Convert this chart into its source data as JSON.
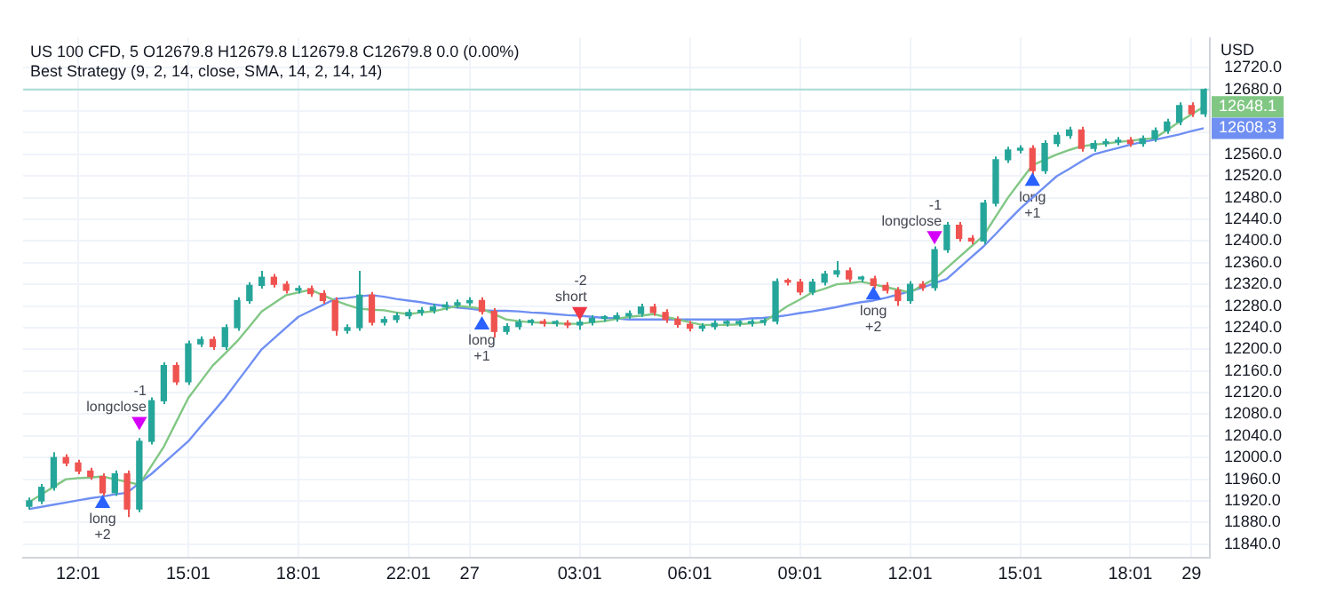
{
  "chart_data": {
    "type": "candlestick",
    "title": "US 100 CFD, 5 O12679.8 H12679.8 L12679.8 C12679.8 0.0 (0.00%)",
    "subtitle": "Best Strategy (9, 2, 14, close, SMA, 14, 2, 14, 14)",
    "ylabel": "USD",
    "categories": [
      null,
      null,
      null,
      null,
      "12:01",
      null,
      null,
      null,
      null,
      null,
      null,
      null,
      null,
      "15:01",
      null,
      null,
      null,
      null,
      null,
      null,
      null,
      null,
      "18:01",
      null,
      null,
      null,
      null,
      null,
      null,
      null,
      null,
      "22:01",
      null,
      null,
      null,
      null,
      "27",
      null,
      null,
      null,
      null,
      null,
      null,
      null,
      null,
      "03:01",
      null,
      null,
      null,
      null,
      null,
      null,
      null,
      null,
      "06:01",
      null,
      null,
      null,
      null,
      null,
      null,
      null,
      null,
      "09:01",
      null,
      null,
      null,
      null,
      null,
      null,
      null,
      null,
      "12:01",
      null,
      null,
      null,
      null,
      null,
      null,
      null,
      null,
      "15:01",
      null,
      null,
      null,
      null,
      null,
      null,
      null,
      null,
      "18:01",
      null,
      null,
      null,
      null,
      "29",
      null
    ],
    "ohlc": [
      [
        11910,
        11926,
        11904,
        11920
      ],
      [
        11920,
        11951,
        11914,
        11945
      ],
      [
        11945,
        12010,
        11939,
        12000
      ],
      [
        12000,
        12006,
        11984,
        11990
      ],
      [
        11990,
        11996,
        11969,
        11975
      ],
      [
        11975,
        11981,
        11959,
        11965
      ],
      [
        11965,
        11971,
        11929,
        11935
      ],
      [
        11935,
        11976,
        11929,
        11970
      ],
      [
        11970,
        11976,
        11890,
        11905
      ],
      [
        11905,
        12036,
        11899,
        12030
      ],
      [
        12030,
        12111,
        12024,
        12105
      ],
      [
        12105,
        12176,
        12099,
        12170
      ],
      [
        12170,
        12176,
        12134,
        12140
      ],
      [
        12140,
        12216,
        12134,
        12210
      ],
      [
        12210,
        12224,
        12204,
        12218
      ],
      [
        12218,
        12224,
        12199,
        12205
      ],
      [
        12205,
        12246,
        12199,
        12240
      ],
      [
        12240,
        12296,
        12234,
        12290
      ],
      [
        12290,
        12324,
        12284,
        12318
      ],
      [
        12318,
        12345,
        12312,
        12333
      ],
      [
        12333,
        12339,
        12314,
        12320
      ],
      [
        12320,
        12326,
        12303,
        12309
      ],
      [
        12309,
        12318,
        12303,
        12312
      ],
      [
        12312,
        12318,
        12297,
        12303
      ],
      [
        12303,
        12309,
        12284,
        12290
      ],
      [
        12290,
        12296,
        12225,
        12235
      ],
      [
        12235,
        12246,
        12229,
        12240
      ],
      [
        12240,
        12345,
        12234,
        12300
      ],
      [
        12300,
        12306,
        12244,
        12250
      ],
      [
        12250,
        12261,
        12244,
        12255
      ],
      [
        12255,
        12268,
        12249,
        12262
      ],
      [
        12262,
        12274,
        12256,
        12268
      ],
      [
        12268,
        12278,
        12262,
        12272
      ],
      [
        12272,
        12284,
        12266,
        12278
      ],
      [
        12278,
        12288,
        12272,
        12282
      ],
      [
        12282,
        12292,
        12276,
        12286
      ],
      [
        12286,
        12296,
        12280,
        12290
      ],
      [
        12290,
        12296,
        12264,
        12270
      ],
      [
        12270,
        12276,
        12222,
        12233
      ],
      [
        12233,
        12248,
        12227,
        12242
      ],
      [
        12242,
        12256,
        12236,
        12250
      ],
      [
        12250,
        12256,
        12244,
        12250
      ],
      [
        12250,
        12256,
        12242,
        12248
      ],
      [
        12248,
        12254,
        12242,
        12248
      ],
      [
        12248,
        12254,
        12239,
        12245
      ],
      [
        12245,
        12256,
        12236,
        12250
      ],
      [
        12250,
        12263,
        12244,
        12257
      ],
      [
        12257,
        12263,
        12251,
        12257
      ],
      [
        12257,
        12268,
        12251,
        12262
      ],
      [
        12262,
        12272,
        12256,
        12266
      ],
      [
        12266,
        12284,
        12260,
        12278
      ],
      [
        12278,
        12284,
        12262,
        12268
      ],
      [
        12268,
        12274,
        12249,
        12255
      ],
      [
        12255,
        12261,
        12240,
        12246
      ],
      [
        12246,
        12252,
        12233,
        12239
      ],
      [
        12239,
        12248,
        12233,
        12242
      ],
      [
        12242,
        12254,
        12236,
        12248
      ],
      [
        12248,
        12254,
        12242,
        12248
      ],
      [
        12248,
        12254,
        12242,
        12248
      ],
      [
        12248,
        12256,
        12242,
        12250
      ],
      [
        12250,
        12258,
        12244,
        12252
      ],
      [
        12252,
        12331,
        12246,
        12325
      ],
      [
        12325,
        12331,
        12318,
        12324
      ],
      [
        12324,
        12330,
        12300,
        12306
      ],
      [
        12306,
        12330,
        12300,
        12324
      ],
      [
        12324,
        12345,
        12318,
        12339
      ],
      [
        12339,
        12363,
        12333,
        12345
      ],
      [
        12345,
        12351,
        12324,
        12330
      ],
      [
        12330,
        12336,
        12324,
        12330
      ],
      [
        12330,
        12336,
        12312,
        12318
      ],
      [
        12318,
        12324,
        12303,
        12309
      ],
      [
        12309,
        12315,
        12280,
        12290
      ],
      [
        12290,
        12326,
        12284,
        12320
      ],
      [
        12320,
        12326,
        12308,
        12314
      ],
      [
        12314,
        12390,
        12308,
        12384
      ],
      [
        12384,
        12435,
        12378,
        12429
      ],
      [
        12429,
        12435,
        12399,
        12405
      ],
      [
        12405,
        12411,
        12394,
        12400
      ],
      [
        12400,
        12476,
        12394,
        12470
      ],
      [
        12470,
        12556,
        12464,
        12550
      ],
      [
        12550,
        12574,
        12544,
        12568
      ],
      [
        12568,
        12577,
        12562,
        12571
      ],
      [
        12571,
        12577,
        12522,
        12530
      ],
      [
        12530,
        12586,
        12524,
        12580
      ],
      [
        12580,
        12601,
        12574,
        12595
      ],
      [
        12595,
        12611,
        12589,
        12605
      ],
      [
        12605,
        12611,
        12565,
        12571
      ],
      [
        12571,
        12586,
        12565,
        12580
      ],
      [
        12580,
        12589,
        12574,
        12583
      ],
      [
        12583,
        12592,
        12577,
        12586
      ],
      [
        12586,
        12592,
        12574,
        12580
      ],
      [
        12580,
        12595,
        12574,
        12589
      ],
      [
        12589,
        12610,
        12583,
        12604
      ],
      [
        12604,
        12626,
        12598,
        12620
      ],
      [
        12620,
        12656,
        12614,
        12650
      ],
      [
        12650,
        12656,
        12629,
        12635
      ],
      [
        12635,
        12682,
        12629,
        12679.8
      ]
    ],
    "colors": [
      "#26a69a",
      "#26a69a",
      "#26a69a",
      "#ef5350",
      "#ef5350",
      "#ef5350",
      "#ef5350",
      "#26a69a",
      "#ef5350",
      "#26a69a",
      "#26a69a",
      "#26a69a",
      "#ef5350",
      "#26a69a",
      "#26a69a",
      "#ef5350",
      "#26a69a",
      "#26a69a",
      "#26a69a",
      "#26a69a",
      "#ef5350",
      "#ef5350",
      "#26a69a",
      "#ef5350",
      "#ef5350",
      "#ef5350",
      "#26a69a",
      "#26a69a",
      "#ef5350",
      "#26a69a",
      "#26a69a",
      "#26a69a",
      "#26a69a",
      "#26a69a",
      "#26a69a",
      "#26a69a",
      "#26a69a",
      "#ef5350",
      "#ef5350",
      "#26a69a",
      "#26a69a",
      "#26a69a",
      "#ef5350",
      "#26a69a",
      "#ef5350",
      "#26a69a",
      "#26a69a",
      "#26a69a",
      "#26a69a",
      "#26a69a",
      "#26a69a",
      "#ef5350",
      "#ef5350",
      "#ef5350",
      "#ef5350",
      "#26a69a",
      "#26a69a",
      "#26a69a",
      "#26a69a",
      "#26a69a",
      "#26a69a",
      "#26a69a",
      "#ef5350",
      "#ef5350",
      "#26a69a",
      "#26a69a",
      "#26a69a",
      "#ef5350",
      "#26a69a",
      "#ef5350",
      "#ef5350",
      "#ef5350",
      "#26a69a",
      "#ef5350",
      "#26a69a",
      "#26a69a",
      "#ef5350",
      "#ef5350",
      "#26a69a",
      "#26a69a",
      "#26a69a",
      "#26a69a",
      "#ef5350",
      "#26a69a",
      "#26a69a",
      "#26a69a",
      "#ef5350",
      "#26a69a",
      "#26a69a",
      "#26a69a",
      "#ef5350",
      "#26a69a",
      "#26a69a",
      "#26a69a",
      "#26a69a",
      "#ef5350",
      "#26a69a"
    ],
    "series": [
      {
        "type": "line",
        "color": "#81c784",
        "values": [
          11918,
          11932,
          11946,
          11960,
          11962,
          11963,
          11965,
          11960,
          11955,
          11950,
          11985,
          12020,
          12065,
          12110,
          12140,
          12170,
          12192,
          12215,
          12242,
          12270,
          12285,
          12300,
          12305,
          12310,
          12300,
          12290,
          12282,
          12275,
          12273,
          12272,
          12268,
          12265,
          12268,
          12270,
          12275,
          12280,
          12278,
          12275,
          12265,
          12255,
          12252,
          12250,
          12249,
          12248,
          12247,
          12247,
          12250,
          12252,
          12256,
          12260,
          12262,
          12265,
          12260,
          12255,
          12250,
          12245,
          12245,
          12245,
          12246,
          12248,
          12250,
          12265,
          12280,
          12292,
          12305,
          12312,
          12320,
          12322,
          12325,
          12320,
          12315,
          12310,
          12305,
          12318,
          12330,
          12350,
          12370,
          12390,
          12410,
          12445,
          12480,
          12510,
          12540,
          12550,
          12560,
          12568,
          12575,
          12578,
          12580,
          12583,
          12585,
          12588,
          12590,
          12605,
          12620,
          12634,
          12648.1
        ],
        "value_labels": [
          null,
          null,
          null,
          null,
          null,
          null,
          null,
          null,
          null,
          null,
          null,
          null,
          null,
          null,
          null,
          null,
          null,
          null,
          null,
          null,
          null,
          null,
          null,
          null,
          null,
          null,
          null,
          null,
          null,
          null,
          null,
          null,
          null,
          null,
          null,
          null,
          null,
          null,
          null,
          null,
          null,
          null,
          null,
          null,
          null,
          null,
          null,
          null,
          null,
          null,
          null,
          null,
          null,
          null,
          null,
          null,
          null,
          null,
          null,
          null,
          null,
          null,
          null,
          null,
          null,
          null,
          null,
          null,
          null,
          null,
          null,
          null,
          null,
          null,
          null,
          null,
          null,
          null,
          null,
          null,
          null,
          null,
          null,
          null,
          null,
          null,
          null,
          null,
          null,
          null,
          null,
          null,
          null,
          null,
          null,
          null,
          "12648.1"
        ]
      },
      {
        "type": "line",
        "color": "#6f8ff2",
        "values": [
          11905,
          11909,
          11913,
          11917,
          11921,
          11925,
          11928,
          11932,
          11935,
          11953,
          11970,
          11990,
          12010,
          12030,
          12057,
          12083,
          12110,
          12140,
          12170,
          12200,
          12220,
          12240,
          12260,
          12271,
          12282,
          12293,
          12295,
          12298,
          12300,
          12297,
          12293,
          12290,
          12287,
          12283,
          12280,
          12277,
          12275,
          12272,
          12271,
          12271,
          12270,
          12268,
          12267,
          12265,
          12263,
          12262,
          12260,
          12258,
          12257,
          12255,
          12255,
          12255,
          12255,
          12255,
          12255,
          12255,
          12255,
          12255,
          12255,
          12257,
          12258,
          12260,
          12263,
          12267,
          12270,
          12274,
          12278,
          12283,
          12287,
          12290,
          12295,
          12301,
          12307,
          12314,
          12322,
          12330,
          12350,
          12370,
          12390,
          12413,
          12437,
          12460,
          12480,
          12500,
          12520,
          12533,
          12547,
          12560,
          12566,
          12572,
          12578,
          12583,
          12587,
          12592,
          12597,
          12603,
          12608.3
        ],
        "value_labels": [
          null,
          null,
          null,
          null,
          null,
          null,
          null,
          null,
          null,
          null,
          null,
          null,
          null,
          null,
          null,
          null,
          null,
          null,
          null,
          null,
          null,
          null,
          null,
          null,
          null,
          null,
          null,
          null,
          null,
          null,
          null,
          null,
          null,
          null,
          null,
          null,
          null,
          null,
          null,
          null,
          null,
          null,
          null,
          null,
          null,
          null,
          null,
          null,
          null,
          null,
          null,
          null,
          null,
          null,
          null,
          null,
          null,
          null,
          null,
          null,
          null,
          null,
          null,
          null,
          null,
          null,
          null,
          null,
          null,
          null,
          null,
          null,
          null,
          null,
          null,
          null,
          null,
          null,
          null,
          null,
          null,
          null,
          null,
          null,
          null,
          null,
          null,
          null,
          null,
          null,
          null,
          null,
          null,
          null,
          null,
          null,
          "12608.3"
        ]
      },
      {
        "type": "scatter",
        "name": "long +2",
        "color": "#2962ff",
        "marker": "triangle",
        "values": [
          null,
          null,
          null,
          null,
          null,
          null,
          11915,
          null,
          null,
          null,
          null,
          null,
          null,
          null,
          null,
          null,
          null,
          null,
          null,
          null,
          null,
          null,
          null,
          null,
          null,
          null,
          null,
          null,
          null,
          null,
          null,
          null,
          null,
          null,
          null,
          null,
          null,
          null,
          null,
          null,
          null,
          null,
          null,
          null,
          null,
          null,
          null,
          null,
          null,
          null,
          null,
          null,
          null,
          null,
          null,
          null,
          null,
          null,
          null,
          null,
          null,
          null,
          null,
          null,
          null,
          null,
          null,
          null,
          null,
          12300,
          null,
          null,
          null,
          null,
          null,
          null,
          null,
          null,
          null,
          null,
          null,
          null,
          null,
          null,
          null,
          null,
          null,
          null,
          null,
          null,
          null,
          null,
          null,
          null,
          null,
          null,
          null
        ]
      },
      {
        "type": "scatter",
        "name": "-1 longclose",
        "color": "#d500f9",
        "marker": "triangle",
        "values": [
          null,
          null,
          null,
          null,
          null,
          null,
          null,
          null,
          null,
          12067,
          null,
          null,
          null,
          null,
          null,
          null,
          null,
          null,
          null,
          null,
          null,
          null,
          null,
          null,
          null,
          null,
          null,
          null,
          null,
          null,
          null,
          null,
          null,
          null,
          null,
          null,
          null,
          null,
          null,
          null,
          null,
          null,
          null,
          null,
          null,
          null,
          null,
          null,
          null,
          null,
          null,
          null,
          null,
          null,
          null,
          null,
          null,
          null,
          null,
          null,
          null,
          null,
          null,
          null,
          null,
          null,
          null,
          null,
          null,
          null,
          null,
          null,
          null,
          null,
          12410,
          null,
          null,
          null,
          null,
          null,
          null,
          null,
          null,
          null,
          null,
          null,
          null,
          null,
          null,
          null,
          null,
          null,
          null,
          null,
          null,
          null,
          null
        ]
      },
      {
        "type": "scatter",
        "name": "long +1",
        "color": "#2962ff",
        "marker": "triangle",
        "values": [
          null,
          null,
          null,
          null,
          null,
          null,
          null,
          null,
          null,
          null,
          null,
          null,
          null,
          null,
          null,
          null,
          null,
          null,
          null,
          null,
          null,
          null,
          null,
          null,
          null,
          null,
          null,
          null,
          null,
          null,
          null,
          null,
          null,
          null,
          null,
          null,
          null,
          12245,
          null,
          null,
          null,
          null,
          null,
          null,
          null,
          null,
          null,
          null,
          null,
          null,
          null,
          null,
          null,
          null,
          null,
          null,
          null,
          null,
          null,
          null,
          null,
          null,
          null,
          null,
          null,
          null,
          null,
          null,
          null,
          null,
          null,
          null,
          null,
          null,
          null,
          null,
          null,
          null,
          null,
          null,
          null,
          null,
          12510,
          null,
          null,
          null,
          null,
          null,
          null,
          null,
          null,
          null,
          null,
          null,
          null,
          null,
          null
        ]
      },
      {
        "type": "scatter",
        "name": "-2 short",
        "color": "#f23645",
        "marker": "triangle",
        "values": [
          null,
          null,
          null,
          null,
          null,
          null,
          null,
          null,
          null,
          null,
          null,
          null,
          null,
          null,
          null,
          null,
          null,
          null,
          null,
          null,
          null,
          null,
          null,
          null,
          null,
          null,
          null,
          null,
          null,
          null,
          null,
          null,
          null,
          null,
          null,
          null,
          null,
          null,
          null,
          null,
          null,
          null,
          null,
          null,
          null,
          12270,
          null,
          null,
          null,
          null,
          null,
          null,
          null,
          null,
          null,
          null,
          null,
          null,
          null,
          null,
          null,
          null,
          null,
          null,
          null,
          null,
          null,
          null,
          null,
          null,
          null,
          null,
          null,
          null,
          null,
          null,
          null,
          null,
          null,
          null,
          null,
          null,
          null,
          null,
          null,
          null,
          null,
          null,
          null,
          null,
          null,
          null,
          null,
          null,
          null,
          null,
          null
        ]
      }
    ],
    "ylim": [
      11815,
      12775
    ],
    "yticks": [
      {
        "value": 11840,
        "label": "11840.0"
      },
      {
        "value": 11880,
        "label": "11880.0"
      },
      {
        "value": 11920,
        "label": "11920.0"
      },
      {
        "value": 11960,
        "label": "11960.0"
      },
      {
        "value": 12000,
        "label": "12000.0"
      },
      {
        "value": 12040,
        "label": "12040.0"
      },
      {
        "value": 12080,
        "label": "12080.0"
      },
      {
        "value": 12120,
        "label": "12120.0"
      },
      {
        "value": 12160,
        "label": "12160.0"
      },
      {
        "value": 12200,
        "label": "12200.0"
      },
      {
        "value": 12240,
        "label": "12240.0"
      },
      {
        "value": 12280,
        "label": "12280.0"
      },
      {
        "value": 12320,
        "label": "12320.0"
      },
      {
        "value": 12360,
        "label": "12360.0"
      },
      {
        "value": 12400,
        "label": "12400.0"
      },
      {
        "value": 12440,
        "label": "12440.0"
      },
      {
        "value": 12480,
        "label": "12480.0"
      },
      {
        "value": 12520,
        "label": "12520.0"
      },
      {
        "value": 12560,
        "label": "12560.0"
      },
      {
        "value": 12600,
        "label": null
      },
      {
        "value": 12640,
        "label": null
      },
      {
        "value": 12680,
        "label": "12680.0"
      },
      {
        "value": 12720,
        "label": "12720.0"
      }
    ],
    "grid": true,
    "ref_lines": [
      {
        "axis": "y",
        "value": 12679.8,
        "color": "#a8dcd5"
      }
    ]
  }
}
